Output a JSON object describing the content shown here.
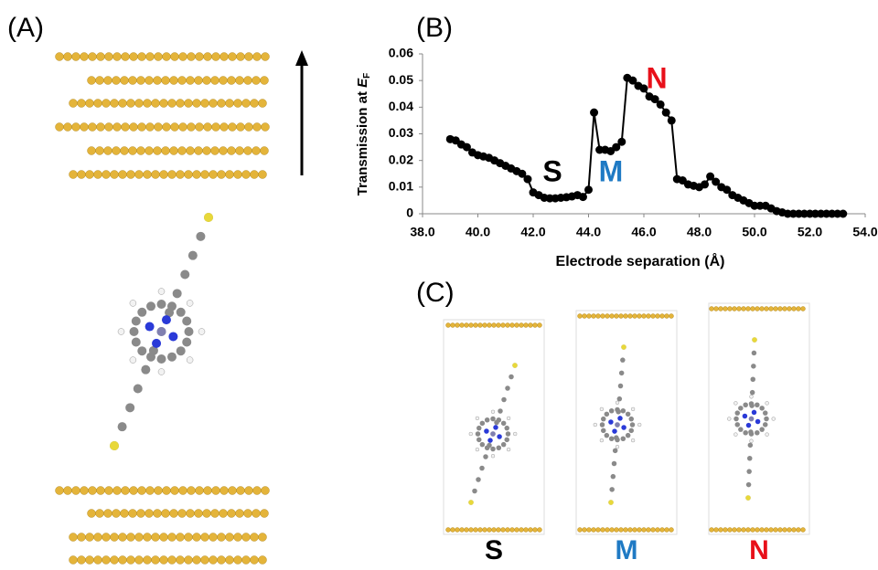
{
  "panels": [
    "(A)",
    "(B)",
    "(C)"
  ],
  "structure_labels": [
    {
      "text": "S",
      "color": "#000000"
    },
    {
      "text": "M",
      "color": "#1f7ac4"
    },
    {
      "text": "N",
      "color": "#e8101a"
    }
  ],
  "chart_data": {
    "type": "line",
    "xlabel": "Electrode separation (Å)",
    "ylabel": {
      "prefix": "Transmission at",
      "symbol": "E",
      "subscript": "F"
    },
    "x": [
      39.0,
      39.2,
      39.4,
      39.6,
      39.8,
      40.0,
      40.2,
      40.4,
      40.6,
      40.8,
      41.0,
      41.2,
      41.4,
      41.6,
      41.8,
      42.0,
      42.2,
      42.4,
      42.6,
      42.8,
      43.0,
      43.2,
      43.4,
      43.6,
      43.8,
      44.0,
      44.2,
      44.4,
      44.6,
      44.8,
      45.0,
      45.2,
      45.4,
      45.6,
      45.8,
      46.0,
      46.2,
      46.4,
      46.6,
      46.8,
      47.0,
      47.2,
      47.4,
      47.6,
      47.8,
      48.0,
      48.2,
      48.4,
      48.6,
      48.8,
      49.0,
      49.2,
      49.4,
      49.6,
      49.8,
      50.0,
      50.2,
      50.4,
      50.6,
      50.8,
      51.0,
      51.2,
      51.4,
      51.6,
      51.8,
      52.0,
      52.2,
      52.4,
      52.6,
      52.8,
      53.0,
      53.2
    ],
    "values": [
      0.028,
      0.0275,
      0.026,
      0.025,
      0.023,
      0.022,
      0.0215,
      0.021,
      0.02,
      0.019,
      0.018,
      0.017,
      0.016,
      0.015,
      0.013,
      0.008,
      0.007,
      0.006,
      0.0058,
      0.0058,
      0.006,
      0.0062,
      0.0065,
      0.007,
      0.0063,
      0.009,
      0.038,
      0.024,
      0.024,
      0.0235,
      0.025,
      0.027,
      0.051,
      0.05,
      0.048,
      0.047,
      0.044,
      0.043,
      0.041,
      0.038,
      0.035,
      0.013,
      0.0125,
      0.011,
      0.0105,
      0.01,
      0.011,
      0.014,
      0.012,
      0.01,
      0.009,
      0.007,
      0.006,
      0.005,
      0.004,
      0.003,
      0.003,
      0.003,
      0.002,
      0.001,
      0.0005,
      0,
      0,
      0,
      0,
      0,
      0,
      0,
      0,
      0,
      0,
      0
    ],
    "color": "#000000",
    "xlim": [
      38,
      54
    ],
    "xticks": [
      {
        "value": 38,
        "label": "38.0"
      },
      {
        "value": 40,
        "label": "40.0"
      },
      {
        "value": 42,
        "label": "42.0"
      },
      {
        "value": 44,
        "label": "44.0"
      },
      {
        "value": 46,
        "label": "46.0"
      },
      {
        "value": 48,
        "label": "48.0"
      },
      {
        "value": 50,
        "label": "50.0"
      },
      {
        "value": 52,
        "label": "52.0"
      },
      {
        "value": 54,
        "label": "54.0"
      }
    ],
    "ylim": [
      0,
      0.06
    ],
    "yticks": [
      0,
      0.01,
      0.02,
      0.03,
      0.04,
      0.05,
      0.06
    ],
    "annotations": [
      {
        "text": "S",
        "color": "#000000"
      },
      {
        "text": "M",
        "color": "#1f7ac4"
      },
      {
        "text": "N",
        "color": "#e8101a"
      }
    ]
  }
}
